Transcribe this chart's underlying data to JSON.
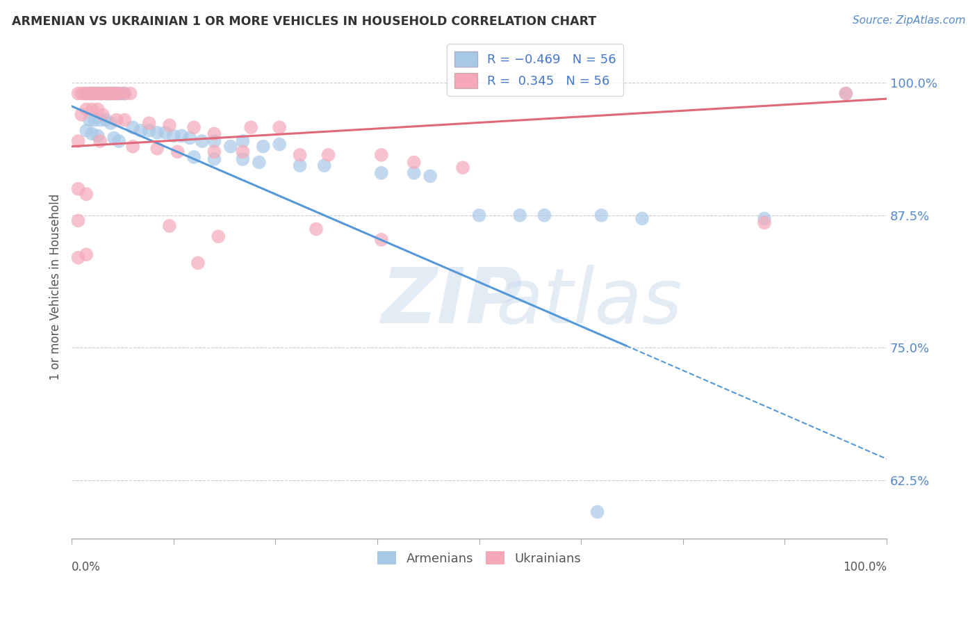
{
  "title": "ARMENIAN VS UKRAINIAN 1 OR MORE VEHICLES IN HOUSEHOLD CORRELATION CHART",
  "source": "Source: ZipAtlas.com",
  "ylabel": "1 or more Vehicles in Household",
  "ytick_labels": [
    "100.0%",
    "87.5%",
    "75.0%",
    "62.5%"
  ],
  "ytick_values": [
    1.0,
    0.875,
    0.75,
    0.625
  ],
  "xlim": [
    0.0,
    1.0
  ],
  "ylim": [
    0.57,
    1.045
  ],
  "armenian_color": "#a8c8e8",
  "ukrainian_color": "#f4a8b8",
  "armenian_line_color": "#5598d8",
  "ukrainian_line_color": "#e06878",
  "watermark_zip": "ZIP",
  "watermark_atlas": "atlas",
  "armenian_points": [
    [
      0.018,
      0.99
    ],
    [
      0.022,
      0.99
    ],
    [
      0.025,
      0.99
    ],
    [
      0.028,
      0.99
    ],
    [
      0.032,
      0.99
    ],
    [
      0.035,
      0.99
    ],
    [
      0.038,
      0.99
    ],
    [
      0.042,
      0.99
    ],
    [
      0.045,
      0.99
    ],
    [
      0.048,
      0.99
    ],
    [
      0.052,
      0.99
    ],
    [
      0.055,
      0.99
    ],
    [
      0.058,
      0.99
    ],
    [
      0.062,
      0.99
    ],
    [
      0.065,
      0.99
    ],
    [
      0.022,
      0.965
    ],
    [
      0.028,
      0.965
    ],
    [
      0.035,
      0.965
    ],
    [
      0.042,
      0.965
    ],
    [
      0.048,
      0.962
    ],
    [
      0.018,
      0.955
    ],
    [
      0.025,
      0.952
    ],
    [
      0.032,
      0.95
    ],
    [
      0.052,
      0.948
    ],
    [
      0.058,
      0.945
    ],
    [
      0.075,
      0.958
    ],
    [
      0.085,
      0.955
    ],
    [
      0.095,
      0.955
    ],
    [
      0.105,
      0.953
    ],
    [
      0.115,
      0.953
    ],
    [
      0.125,
      0.95
    ],
    [
      0.135,
      0.95
    ],
    [
      0.145,
      0.948
    ],
    [
      0.16,
      0.945
    ],
    [
      0.175,
      0.945
    ],
    [
      0.195,
      0.94
    ],
    [
      0.21,
      0.945
    ],
    [
      0.235,
      0.94
    ],
    [
      0.255,
      0.942
    ],
    [
      0.15,
      0.93
    ],
    [
      0.175,
      0.928
    ],
    [
      0.21,
      0.928
    ],
    [
      0.23,
      0.925
    ],
    [
      0.28,
      0.922
    ],
    [
      0.31,
      0.922
    ],
    [
      0.38,
      0.915
    ],
    [
      0.42,
      0.915
    ],
    [
      0.44,
      0.912
    ],
    [
      0.5,
      0.875
    ],
    [
      0.55,
      0.875
    ],
    [
      0.58,
      0.875
    ],
    [
      0.65,
      0.875
    ],
    [
      0.7,
      0.872
    ],
    [
      0.85,
      0.872
    ],
    [
      0.95,
      0.99
    ],
    [
      0.645,
      0.595
    ]
  ],
  "ukrainian_points": [
    [
      0.008,
      0.99
    ],
    [
      0.012,
      0.99
    ],
    [
      0.015,
      0.99
    ],
    [
      0.018,
      0.99
    ],
    [
      0.022,
      0.99
    ],
    [
      0.025,
      0.99
    ],
    [
      0.028,
      0.99
    ],
    [
      0.032,
      0.99
    ],
    [
      0.035,
      0.99
    ],
    [
      0.038,
      0.99
    ],
    [
      0.042,
      0.99
    ],
    [
      0.045,
      0.99
    ],
    [
      0.048,
      0.99
    ],
    [
      0.052,
      0.99
    ],
    [
      0.055,
      0.99
    ],
    [
      0.058,
      0.99
    ],
    [
      0.065,
      0.99
    ],
    [
      0.072,
      0.99
    ],
    [
      0.018,
      0.975
    ],
    [
      0.025,
      0.975
    ],
    [
      0.032,
      0.975
    ],
    [
      0.012,
      0.97
    ],
    [
      0.038,
      0.97
    ],
    [
      0.055,
      0.965
    ],
    [
      0.065,
      0.965
    ],
    [
      0.095,
      0.962
    ],
    [
      0.12,
      0.96
    ],
    [
      0.15,
      0.958
    ],
    [
      0.22,
      0.958
    ],
    [
      0.255,
      0.958
    ],
    [
      0.175,
      0.952
    ],
    [
      0.008,
      0.945
    ],
    [
      0.035,
      0.945
    ],
    [
      0.075,
      0.94
    ],
    [
      0.105,
      0.938
    ],
    [
      0.13,
      0.935
    ],
    [
      0.175,
      0.935
    ],
    [
      0.21,
      0.935
    ],
    [
      0.28,
      0.932
    ],
    [
      0.315,
      0.932
    ],
    [
      0.38,
      0.932
    ],
    [
      0.42,
      0.925
    ],
    [
      0.48,
      0.92
    ],
    [
      0.008,
      0.9
    ],
    [
      0.018,
      0.895
    ],
    [
      0.008,
      0.87
    ],
    [
      0.12,
      0.865
    ],
    [
      0.18,
      0.855
    ],
    [
      0.3,
      0.862
    ],
    [
      0.38,
      0.852
    ],
    [
      0.85,
      0.868
    ],
    [
      0.95,
      0.99
    ],
    [
      0.008,
      0.835
    ],
    [
      0.018,
      0.838
    ],
    [
      0.155,
      0.83
    ]
  ],
  "armenian_line": {
    "x0": 0.0,
    "y0": 0.978,
    "x1": 0.68,
    "y1": 0.752
  },
  "armenian_line_dash": {
    "x0": 0.68,
    "y0": 0.752,
    "x1": 1.0,
    "y1": 0.645
  },
  "ukrainian_line": {
    "x0": 0.0,
    "y0": 0.94,
    "x1": 1.0,
    "y1": 0.985
  }
}
